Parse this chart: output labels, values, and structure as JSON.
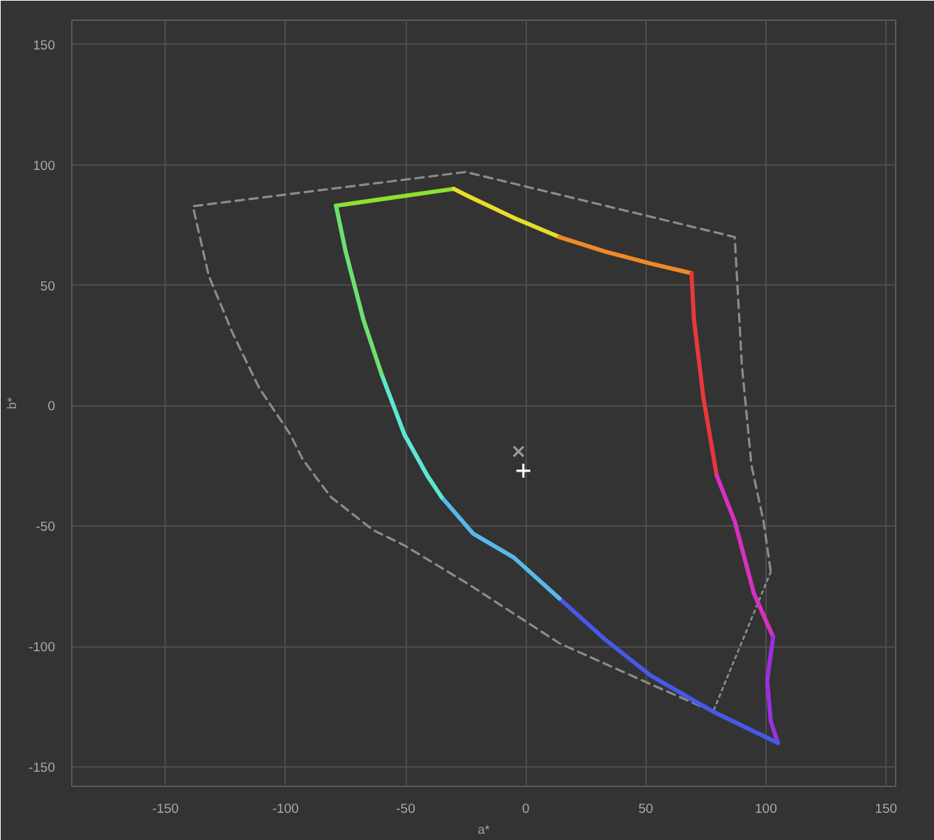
{
  "chart_data": {
    "type": "line",
    "xlabel": "a*",
    "ylabel": "b*",
    "xlim": [
      -189,
      154
    ],
    "ylim": [
      -158,
      160
    ],
    "xticks": [
      -150,
      -100,
      -50,
      0,
      50,
      100,
      150
    ],
    "yticks": [
      -150,
      -100,
      -50,
      0,
      50,
      100,
      150
    ],
    "grid": true,
    "series": [
      {
        "line_style": "dashed",
        "color": "#8c8c8c",
        "x": [
          78,
          52,
          14,
          -24,
          -50.5,
          -63.6,
          -81,
          -87.5,
          -93,
          -98,
          -111,
          -122,
          -132,
          -138.6,
          -25,
          87,
          90,
          94,
          99,
          102
        ],
        "values": [
          -127,
          -115.6,
          -98.6,
          -74,
          -58,
          -51.6,
          -38,
          -29.5,
          -22,
          -12,
          7.4,
          30,
          54,
          82.8,
          97,
          70,
          16.5,
          -25,
          -48,
          -69
        ]
      },
      {
        "line_style": "dotted",
        "color": "#8c8c8c",
        "x": [
          102,
          78
        ],
        "values": [
          -69,
          -127
        ]
      },
      {
        "color": "#8fe030",
        "x": [
          -79,
          -30
        ],
        "values": [
          83,
          90
        ]
      },
      {
        "color": "#e8dc2a",
        "x": [
          -30,
          -24,
          -5,
          14
        ],
        "values": [
          90,
          87,
          78,
          70
        ]
      },
      {
        "color": "#ee8a26",
        "x": [
          14,
          33,
          52,
          69
        ],
        "values": [
          70,
          64,
          59,
          55
        ]
      },
      {
        "color": "#e8383c",
        "x": [
          69,
          70,
          74,
          79.5
        ],
        "values": [
          55,
          36,
          3,
          -29
        ]
      },
      {
        "color": "#d630c0",
        "x": [
          79.5,
          87,
          95,
          103
        ],
        "values": [
          -29,
          -48,
          -78,
          -96
        ]
      },
      {
        "color": "#9a30e0",
        "x": [
          103,
          100.5,
          102,
          105
        ],
        "values": [
          -96,
          -114,
          -131,
          -140
        ]
      },
      {
        "color": "#4858e8",
        "x": [
          105,
          78,
          52,
          33,
          14
        ],
        "values": [
          -140,
          -127,
          -112,
          -97,
          -80
        ]
      },
      {
        "color": "#58b8e8",
        "x": [
          14,
          -5,
          -22,
          -35
        ],
        "values": [
          -80,
          -63,
          -53,
          -38
        ]
      },
      {
        "color": "#5ce8d0",
        "x": [
          -35,
          -41,
          -50.5,
          -60
        ],
        "values": [
          -38,
          -29,
          -12,
          13
        ]
      },
      {
        "color": "#6ee070",
        "x": [
          -60,
          -67.6,
          -75,
          -79
        ],
        "values": [
          13,
          35.7,
          64,
          83
        ]
      },
      {
        "type": "scatter",
        "marker": "x",
        "color": "#9a9a9a",
        "x": [
          -3
        ],
        "values": [
          -19
        ]
      },
      {
        "type": "scatter",
        "marker": "cross",
        "color": "#ffffff",
        "x": [
          -1
        ],
        "values": [
          -27
        ]
      }
    ]
  }
}
